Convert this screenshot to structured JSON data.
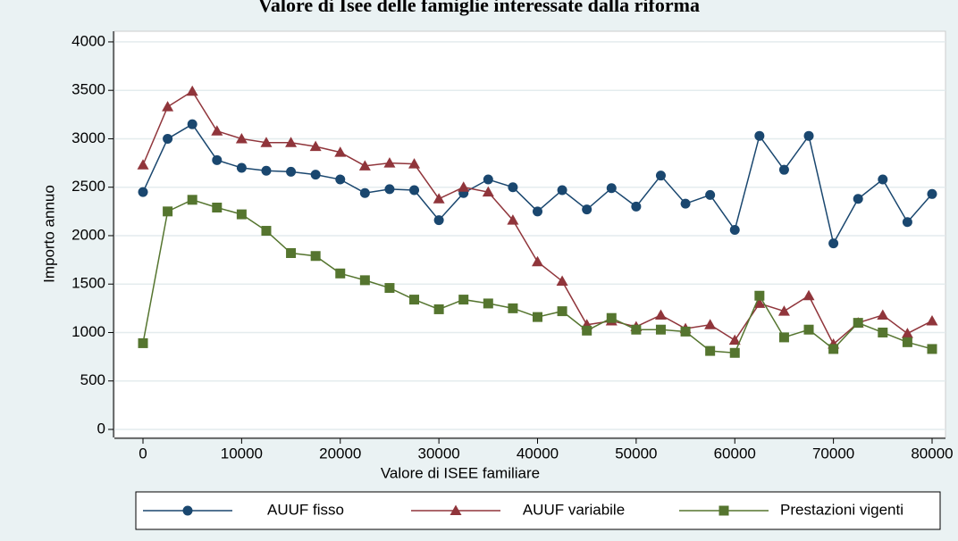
{
  "chart_data": {
    "type": "line",
    "title": "Valore di Isee delle famiglie interessate dalla riforma",
    "x_label": "Valore di ISEE familiare",
    "y_label": "Importo annuo",
    "x": [
      0,
      2500,
      5000,
      7500,
      10000,
      12500,
      15000,
      17500,
      20000,
      22500,
      25000,
      27500,
      30000,
      32500,
      35000,
      37500,
      40000,
      42500,
      45000,
      47500,
      50000,
      52500,
      55000,
      57500,
      60000,
      62500,
      65000,
      67500,
      70000,
      72500,
      75000,
      77500,
      80000
    ],
    "series": [
      {
        "name": "AUUF fisso",
        "color": "#1a476f",
        "marker": "circle",
        "values": [
          2450,
          3000,
          3150,
          2780,
          2700,
          2670,
          2660,
          2630,
          2580,
          2440,
          2480,
          2470,
          2160,
          2440,
          2580,
          2500,
          2250,
          2470,
          2270,
          2490,
          2300,
          2620,
          2330,
          2420,
          2060,
          3030,
          2680,
          3030,
          1920,
          2380,
          2580,
          2140,
          2430
        ]
      },
      {
        "name": "AUUF variabile",
        "color": "#90353b",
        "marker": "triangle",
        "values": [
          2730,
          3330,
          3490,
          3080,
          3000,
          2960,
          2960,
          2920,
          2860,
          2720,
          2750,
          2740,
          2380,
          2500,
          2450,
          2160,
          1730,
          1530,
          1080,
          1120,
          1060,
          1180,
          1040,
          1080,
          920,
          1300,
          1220,
          1380,
          880,
          1100,
          1180,
          990,
          1120
        ]
      },
      {
        "name": "Prestazioni vigenti",
        "color": "#55752f",
        "marker": "square",
        "values": [
          890,
          2250,
          2370,
          2290,
          2220,
          2050,
          1820,
          1790,
          1610,
          1540,
          1460,
          1340,
          1240,
          1340,
          1300,
          1250,
          1160,
          1220,
          1020,
          1150,
          1030,
          1030,
          1010,
          810,
          790,
          1380,
          950,
          1030,
          830,
          1100,
          1000,
          900,
          830
        ]
      }
    ],
    "xlim": [
      -2900,
      81360
    ],
    "ylim": [
      -83,
      4110
    ],
    "xticks": [
      0,
      10000,
      20000,
      30000,
      40000,
      50000,
      60000,
      70000,
      80000
    ],
    "yticks": [
      0,
      500,
      1000,
      1500,
      2000,
      2500,
      3000,
      3500,
      4000
    ],
    "grid": true,
    "legend": "bottom"
  }
}
